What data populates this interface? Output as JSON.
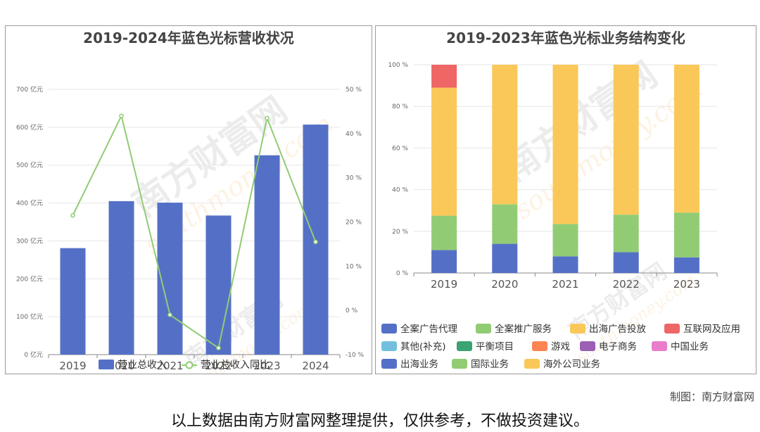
{
  "colors": {
    "revenue_bar": "#5470c6",
    "yoy_line": "#91cc75",
    "full_ad_agency": "#5470c6",
    "full_promo_service": "#91cc75",
    "overseas_ad": "#fac858",
    "internet_app": "#ee6666",
    "other": "#73c0de",
    "balance": "#3ba272",
    "games": "#fc8452",
    "ecommerce": "#9a60b4",
    "china": "#ea7ccc",
    "overseas_business": "#5470c6",
    "international": "#91cc75",
    "overseas_company": "#fac858"
  },
  "chart_data": [
    {
      "type": "bar",
      "title": "2019-2024年蓝色光标营收状况",
      "categories": [
        "2019",
        "2020",
        "2021",
        "2022",
        "2023",
        "2024"
      ],
      "series": [
        {
          "name": "营业总收入",
          "type": "bar",
          "axis": "left",
          "values": [
            281,
            405,
            401,
            367,
            526,
            607
          ]
        },
        {
          "name": "营业总收入同比",
          "type": "line",
          "axis": "right",
          "values": [
            21.5,
            44.0,
            -1.0,
            -8.5,
            43.5,
            15.5
          ]
        }
      ],
      "y_left": {
        "ylim": [
          0,
          700
        ],
        "ticks": [
          "0 亿元",
          "100 亿元",
          "200 亿元",
          "300 亿元",
          "400 亿元",
          "500 亿元",
          "600 亿元",
          "700 亿元"
        ]
      },
      "y_right": {
        "ylim": [
          -10,
          50
        ],
        "ticks": [
          "-10 %",
          "0 %",
          "10 %",
          "20 %",
          "30 %",
          "40 %",
          "50 %"
        ]
      },
      "grid": true,
      "legend": "bottom"
    },
    {
      "type": "bar",
      "stacked": true,
      "title": "2019-2023年蓝色光标业务结构变化",
      "categories": [
        "2019",
        "2020",
        "2021",
        "2022",
        "2023"
      ],
      "series": [
        {
          "name": "全案广告代理",
          "values": [
            11,
            14,
            8,
            10,
            7.5
          ]
        },
        {
          "name": "全案推广服务",
          "values": [
            16.5,
            19,
            15.5,
            18,
            21.5
          ]
        },
        {
          "name": "出海广告投放",
          "values": [
            61.5,
            67,
            76.5,
            72,
            71
          ]
        },
        {
          "name": "互联网及应用",
          "values": [
            11,
            0,
            0,
            0,
            0
          ]
        },
        {
          "name": "其他(补充)",
          "values": [
            0,
            0,
            0,
            0,
            0
          ]
        },
        {
          "name": "平衡项目",
          "values": [
            0,
            0,
            0,
            0,
            0
          ]
        },
        {
          "name": "游戏",
          "values": [
            0,
            0,
            0,
            0,
            0
          ]
        },
        {
          "name": "电子商务",
          "values": [
            0,
            0,
            0,
            0,
            0
          ]
        },
        {
          "name": "中国业务",
          "values": [
            0,
            0,
            0,
            0,
            0
          ]
        },
        {
          "name": "出海业务",
          "values": [
            0,
            0,
            0,
            0,
            0
          ]
        },
        {
          "name": "国际业务",
          "values": [
            0,
            0,
            0,
            0,
            0
          ]
        },
        {
          "name": "海外公司业务",
          "values": [
            0,
            0,
            0,
            0,
            0
          ]
        }
      ],
      "y": {
        "ylim": [
          0,
          100
        ],
        "ticks": [
          "0 %",
          "20 %",
          "40 %",
          "60 %",
          "80 %",
          "100 %"
        ]
      },
      "grid": true,
      "legend": "bottom"
    }
  ],
  "watermark": {
    "text_cn": "南方财富网",
    "text_en": "southmoney.com"
  },
  "credit": "制图：南方财富网",
  "disclaimer": "以上数据由南方财富网整理提供，仅供参考，不做投资建议。"
}
